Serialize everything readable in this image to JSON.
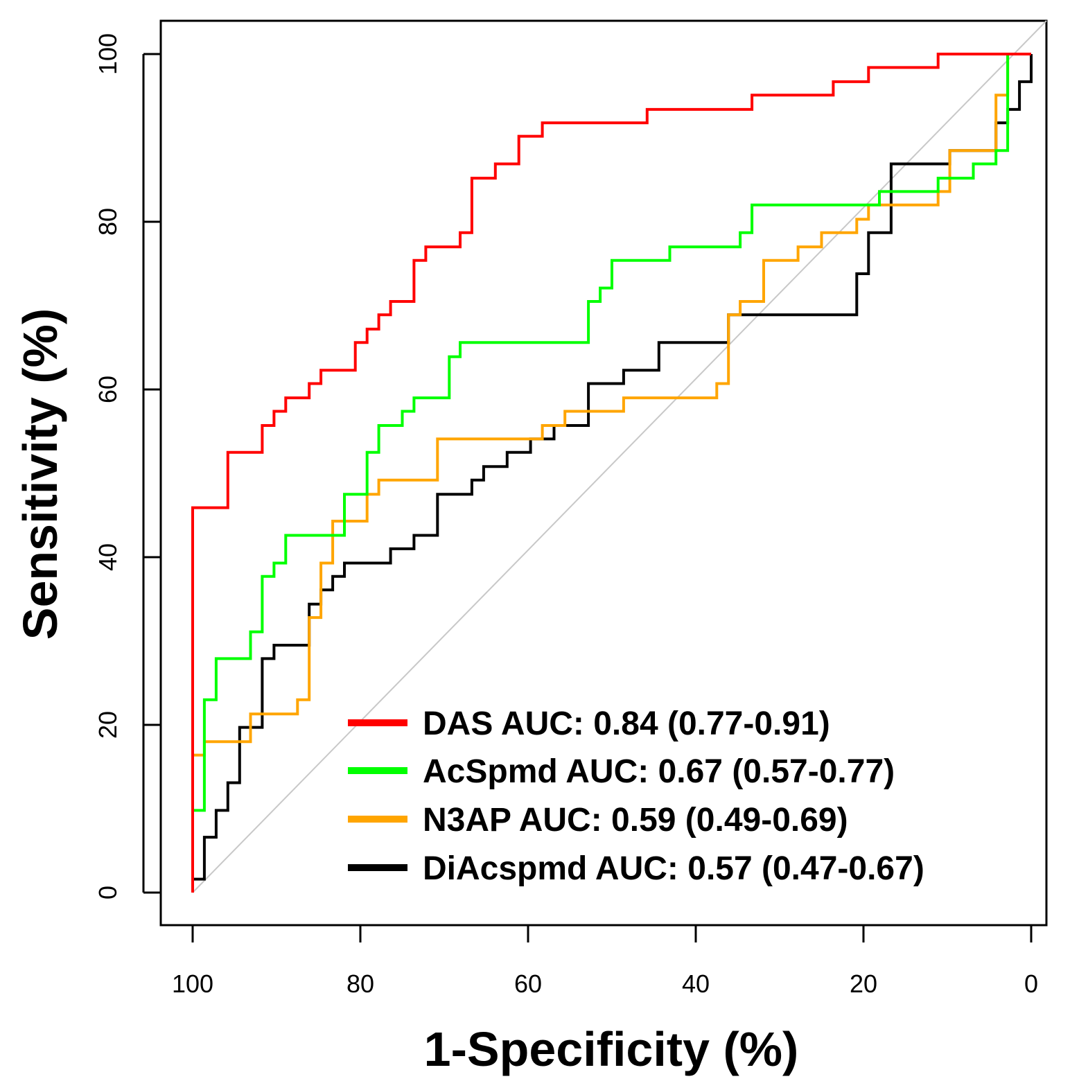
{
  "chart_data": {
    "type": "line",
    "xlabel": "1-Specificity (%)",
    "ylabel": "Sensitivity (%)",
    "xlim": [
      100,
      0
    ],
    "ylim": [
      0,
      100
    ],
    "x_reversed": true,
    "x_ticks": [
      100,
      80,
      60,
      40,
      20,
      0
    ],
    "x_tick_labels": [
      "100",
      "80",
      "60",
      "40",
      "20",
      "0"
    ],
    "y_ticks": [
      0,
      20,
      40,
      60,
      80,
      100
    ],
    "y_tick_labels": [
      "0",
      "20",
      "40",
      "60",
      "80",
      "100"
    ],
    "grid": false,
    "diagonal_reference": true,
    "diagonal_color": "#c8c8c8",
    "legend_position": "bottom-right",
    "series": [
      {
        "name": "DAS AUC: 0.84 (0.77-0.91)",
        "color": "#ff0000",
        "step_points": [
          [
            100,
            0
          ],
          [
            100,
            16.4
          ],
          [
            100,
            45.9
          ],
          [
            95.8,
            45.9
          ],
          [
            95.8,
            52.5
          ],
          [
            91.7,
            52.5
          ],
          [
            91.7,
            55.7
          ],
          [
            90.3,
            55.7
          ],
          [
            90.3,
            57.4
          ],
          [
            88.9,
            57.4
          ],
          [
            88.9,
            59
          ],
          [
            86.1,
            59
          ],
          [
            86.1,
            60.7
          ],
          [
            84.7,
            60.7
          ],
          [
            84.7,
            62.3
          ],
          [
            80.6,
            62.3
          ],
          [
            80.6,
            65.6
          ],
          [
            79.2,
            65.6
          ],
          [
            79.2,
            67.2
          ],
          [
            77.8,
            67.2
          ],
          [
            77.8,
            68.9
          ],
          [
            76.4,
            68.9
          ],
          [
            76.4,
            70.5
          ],
          [
            73.6,
            70.5
          ],
          [
            73.6,
            75.4
          ],
          [
            72.2,
            75.4
          ],
          [
            72.2,
            77
          ],
          [
            68.1,
            77
          ],
          [
            68.1,
            78.7
          ],
          [
            66.7,
            78.7
          ],
          [
            66.7,
            85.2
          ],
          [
            63.9,
            85.2
          ],
          [
            63.9,
            86.9
          ],
          [
            61.1,
            86.9
          ],
          [
            61.1,
            90.2
          ],
          [
            58.3,
            90.2
          ],
          [
            58.3,
            91.8
          ],
          [
            52.8,
            91.8
          ],
          [
            52.8,
            91.8
          ],
          [
            45.8,
            91.8
          ],
          [
            45.8,
            93.4
          ],
          [
            33.3,
            93.4
          ],
          [
            33.3,
            95.1
          ],
          [
            23.6,
            95.1
          ],
          [
            23.6,
            96.7
          ],
          [
            19.4,
            96.7
          ],
          [
            19.4,
            98.4
          ],
          [
            11.1,
            98.4
          ],
          [
            11.1,
            100
          ],
          [
            0,
            100
          ]
        ]
      },
      {
        "name": "AcSpmd AUC: 0.67 (0.57-0.77)",
        "color": "#00ff00",
        "step_points": [
          [
            100,
            0
          ],
          [
            100,
            9.8
          ],
          [
            98.6,
            9.8
          ],
          [
            98.6,
            23
          ],
          [
            97.2,
            23
          ],
          [
            97.2,
            27.9
          ],
          [
            93.1,
            27.9
          ],
          [
            93.1,
            31.1
          ],
          [
            91.7,
            31.1
          ],
          [
            91.7,
            37.7
          ],
          [
            90.3,
            37.7
          ],
          [
            90.3,
            39.3
          ],
          [
            88.9,
            39.3
          ],
          [
            88.9,
            42.6
          ],
          [
            81.9,
            42.6
          ],
          [
            81.9,
            47.5
          ],
          [
            79.2,
            47.5
          ],
          [
            79.2,
            52.5
          ],
          [
            77.8,
            52.5
          ],
          [
            77.8,
            55.7
          ],
          [
            75,
            55.7
          ],
          [
            75,
            57.4
          ],
          [
            73.6,
            57.4
          ],
          [
            73.6,
            59
          ],
          [
            69.4,
            59
          ],
          [
            69.4,
            63.9
          ],
          [
            68.1,
            63.9
          ],
          [
            68.1,
            65.6
          ],
          [
            52.8,
            65.6
          ],
          [
            52.8,
            70.5
          ],
          [
            51.4,
            70.5
          ],
          [
            51.4,
            72.1
          ],
          [
            50,
            72.1
          ],
          [
            50,
            75.4
          ],
          [
            43.1,
            75.4
          ],
          [
            43.1,
            77
          ],
          [
            34.7,
            77
          ],
          [
            34.7,
            78.7
          ],
          [
            33.3,
            78.7
          ],
          [
            33.3,
            82
          ],
          [
            18.1,
            82
          ],
          [
            18.1,
            83.6
          ],
          [
            11.1,
            83.6
          ],
          [
            11.1,
            85.2
          ],
          [
            9.7,
            85.2
          ],
          [
            9.7,
            85.2
          ],
          [
            6.9,
            85.2
          ],
          [
            6.9,
            86.9
          ],
          [
            4.2,
            86.9
          ],
          [
            4.2,
            88.5
          ],
          [
            2.8,
            88.5
          ],
          [
            2.8,
            95.1
          ],
          [
            2.8,
            100
          ],
          [
            0,
            100
          ]
        ]
      },
      {
        "name": "N3AP AUC: 0.59 (0.49-0.69)",
        "color": "#ffa500",
        "step_points": [
          [
            100,
            0
          ],
          [
            100,
            16.4
          ],
          [
            98.6,
            16.4
          ],
          [
            98.6,
            18
          ],
          [
            93.1,
            18
          ],
          [
            93.1,
            21.3
          ],
          [
            87.5,
            21.3
          ],
          [
            87.5,
            23
          ],
          [
            86.1,
            23
          ],
          [
            86.1,
            32.8
          ],
          [
            84.7,
            32.8
          ],
          [
            84.7,
            39.3
          ],
          [
            83.3,
            39.3
          ],
          [
            83.3,
            44.3
          ],
          [
            79.2,
            44.3
          ],
          [
            79.2,
            47.5
          ],
          [
            77.8,
            47.5
          ],
          [
            77.8,
            49.2
          ],
          [
            70.8,
            49.2
          ],
          [
            70.8,
            54.1
          ],
          [
            58.3,
            54.1
          ],
          [
            58.3,
            55.7
          ],
          [
            55.6,
            55.7
          ],
          [
            55.6,
            57.4
          ],
          [
            48.6,
            57.4
          ],
          [
            48.6,
            59
          ],
          [
            37.5,
            59
          ],
          [
            37.5,
            60.7
          ],
          [
            36.1,
            60.7
          ],
          [
            36.1,
            68.9
          ],
          [
            34.7,
            68.9
          ],
          [
            34.7,
            70.5
          ],
          [
            31.9,
            70.5
          ],
          [
            31.9,
            75.4
          ],
          [
            27.8,
            75.4
          ],
          [
            27.8,
            77
          ],
          [
            25,
            77
          ],
          [
            25,
            78.7
          ],
          [
            20.8,
            78.7
          ],
          [
            20.8,
            80.3
          ],
          [
            19.4,
            80.3
          ],
          [
            19.4,
            82
          ],
          [
            11.1,
            82
          ],
          [
            11.1,
            83.6
          ],
          [
            9.7,
            83.6
          ],
          [
            9.7,
            88.5
          ],
          [
            4.2,
            88.5
          ],
          [
            4.2,
            95.1
          ],
          [
            2.8,
            95.1
          ],
          [
            2.8,
            100
          ],
          [
            0,
            100
          ]
        ]
      },
      {
        "name": "DiAcspmd AUC: 0.57 (0.47-0.67)",
        "color": "#000000",
        "step_points": [
          [
            100,
            0
          ],
          [
            100,
            1.6
          ],
          [
            98.6,
            1.6
          ],
          [
            98.6,
            6.6
          ],
          [
            97.2,
            6.6
          ],
          [
            97.2,
            9.8
          ],
          [
            95.8,
            9.8
          ],
          [
            95.8,
            13.1
          ],
          [
            94.4,
            13.1
          ],
          [
            94.4,
            19.7
          ],
          [
            91.7,
            19.7
          ],
          [
            91.7,
            27.9
          ],
          [
            90.3,
            27.9
          ],
          [
            90.3,
            29.5
          ],
          [
            86.1,
            29.5
          ],
          [
            86.1,
            34.4
          ],
          [
            84.7,
            34.4
          ],
          [
            84.7,
            36.1
          ],
          [
            83.3,
            36.1
          ],
          [
            83.3,
            37.7
          ],
          [
            81.9,
            37.7
          ],
          [
            81.9,
            39.3
          ],
          [
            76.4,
            39.3
          ],
          [
            76.4,
            41
          ],
          [
            73.6,
            41
          ],
          [
            73.6,
            42.6
          ],
          [
            70.8,
            42.6
          ],
          [
            70.8,
            47.5
          ],
          [
            66.7,
            47.5
          ],
          [
            66.7,
            49.2
          ],
          [
            65.3,
            49.2
          ],
          [
            65.3,
            50.8
          ],
          [
            62.5,
            50.8
          ],
          [
            62.5,
            52.5
          ],
          [
            59.7,
            52.5
          ],
          [
            59.7,
            54.1
          ],
          [
            56.9,
            54.1
          ],
          [
            56.9,
            55.7
          ],
          [
            52.8,
            55.7
          ],
          [
            52.8,
            60.7
          ],
          [
            48.6,
            60.7
          ],
          [
            48.6,
            62.3
          ],
          [
            44.4,
            62.3
          ],
          [
            44.4,
            65.6
          ],
          [
            36.1,
            65.6
          ],
          [
            36.1,
            68.9
          ],
          [
            20.8,
            68.9
          ],
          [
            20.8,
            73.8
          ],
          [
            19.4,
            73.8
          ],
          [
            19.4,
            78.7
          ],
          [
            16.7,
            78.7
          ],
          [
            16.7,
            86.9
          ],
          [
            9.7,
            86.9
          ],
          [
            9.7,
            88.5
          ],
          [
            4.2,
            88.5
          ],
          [
            4.2,
            91.8
          ],
          [
            2.8,
            91.8
          ],
          [
            2.8,
            93.4
          ],
          [
            1.4,
            93.4
          ],
          [
            1.4,
            96.7
          ],
          [
            0,
            96.7
          ],
          [
            0,
            100
          ]
        ]
      }
    ]
  }
}
